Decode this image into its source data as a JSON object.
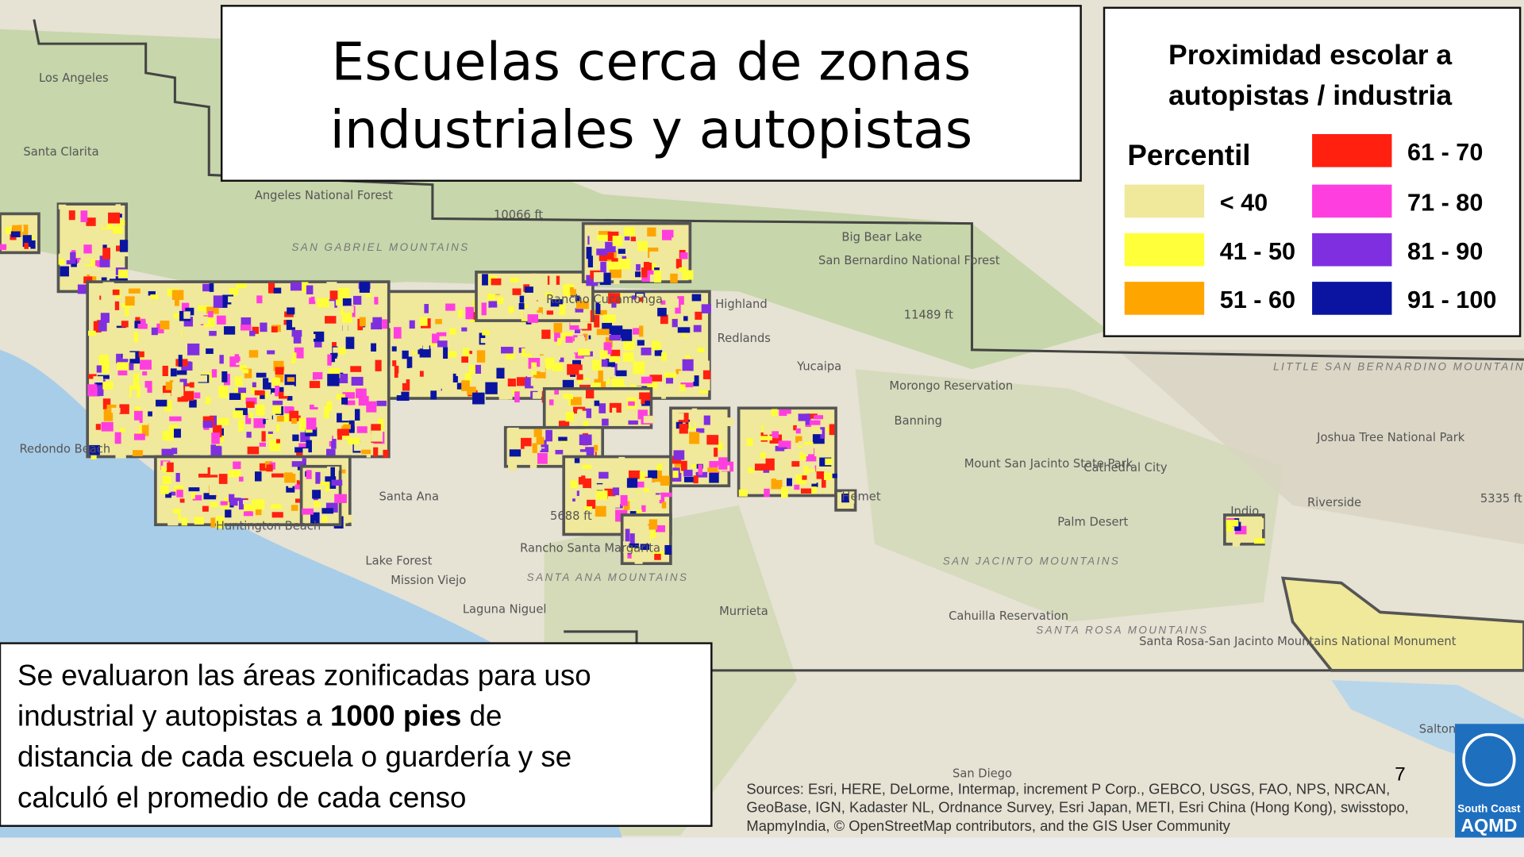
{
  "title": {
    "lines": [
      "Escuelas cerca de zonas",
      "industriales y autopistas"
    ]
  },
  "legend": {
    "title_lines": [
      "Proximidad escolar a",
      "autopistas / industria"
    ],
    "header": "Percentil",
    "items": [
      {
        "label": "< 40",
        "color": "#f0e89a"
      },
      {
        "label": "41 - 50",
        "color": "#ffff3a"
      },
      {
        "label": "51 - 60",
        "color": "#ffa500"
      },
      {
        "label": "61 - 70",
        "color": "#ff2010"
      },
      {
        "label": "71 - 80",
        "color": "#ff3ee0"
      },
      {
        "label": "81 - 90",
        "color": "#7f2fe0"
      },
      {
        "label": "91 - 100",
        "color": "#0a14a0"
      }
    ]
  },
  "note": {
    "lines": [
      [
        "Se evaluaron las áreas zonificadas para uso"
      ],
      [
        "industrial y autopistas a ",
        "1000 pies",
        " de"
      ],
      [
        "distancia de cada escuela o guardería y se"
      ],
      [
        "calculó el promedio de cada censo"
      ]
    ]
  },
  "map_labels": [
    "Los Angeles",
    "Santa Clarita",
    "Angeles National Forest",
    "SAN GABRIEL MOUNTAINS",
    "10066 ft",
    "Big Bear Lake",
    "San Bernardino National Forest",
    "Rancho Cucamonga",
    "Highland",
    "Redlands",
    "11489 ft",
    "Yucaipa",
    "Morongo Reservation",
    "Banning",
    "Redondo Beach",
    "Santa Ana",
    "Huntington Beach",
    "Lake Forest",
    "Mission Viejo",
    "Rancho Santa Margarita",
    "SANTA ANA MOUNTAINS",
    "5688 ft",
    "Laguna Niguel",
    "Murrieta",
    "Hemet",
    "Mount San Jacinto State Park",
    "Cathedral City",
    "Palm Desert",
    "Indio",
    "SAN JACINTO MOUNTAINS",
    "Cahuilla Reservation",
    "SANTA ROSA MOUNTAINS",
    "Santa Rosa-San Jacinto Mountains National Monument",
    "Joshua Tree National Park",
    "Riverside",
    "LITTLE SAN BERNARDINO MOUNTAINS",
    "5335 ft",
    "San Diego",
    "Salton"
  ],
  "sources": [
    "Sources: Esri, HERE, DeLorme, Intermap, increment P Corp., GEBCO, USGS, FAO, NPS, NRCAN,",
    "GeoBase, IGN, Kadaster NL, Ordnance Survey, Esri Japan, METI, Esri China (Hong Kong), swisstopo,",
    "MapmyIndia, © OpenStreetMap contributors, and the GIS User Community"
  ],
  "page_number": "7",
  "logo": [
    "South Coast",
    "AQMD"
  ]
}
